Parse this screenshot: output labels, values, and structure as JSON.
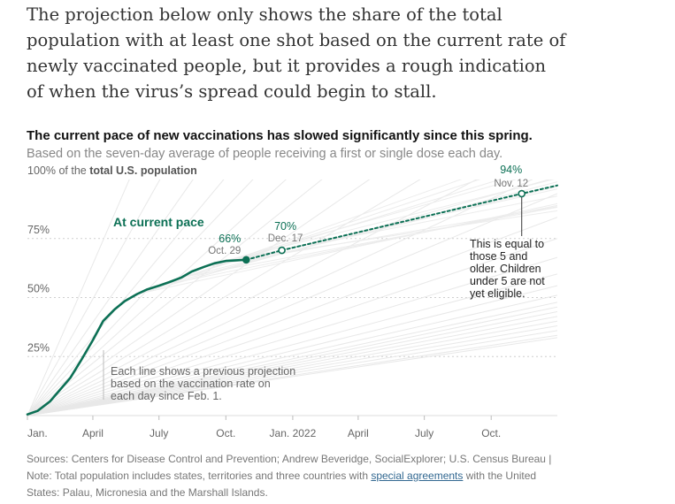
{
  "intro": {
    "text": "The projection below only shows the share of the total population with at least one shot based on the current rate of newly vaccinated people, but it provides a rough indication of when the virus’s spread could begin to stall."
  },
  "chart_data": {
    "type": "line",
    "title": "The current pace of new vaccinations has slowed significantly since this spring.",
    "subtitle": "Based on the seven-day average of people receiving a first or single dose each day.",
    "y_axis": {
      "top_label_prefix": "100% of the ",
      "top_label_bold": "total U.S. population",
      "ticks": [
        "75%",
        "50%",
        "25%"
      ],
      "tick_values": [
        75,
        50,
        25
      ],
      "ylim": [
        0,
        100
      ]
    },
    "x_axis": {
      "ticks": [
        "Jan.",
        "April",
        "July",
        "Oct.",
        "Jan. 2022",
        "April",
        "July",
        "Oct."
      ],
      "tick_dates": [
        "2021-01-01",
        "2021-04-01",
        "2021-07-01",
        "2021-10-01",
        "2022-01-01",
        "2022-04-01",
        "2022-07-01",
        "2022-10-01"
      ],
      "xlim": [
        "2021-01-01",
        "2022-12-31"
      ]
    },
    "grid": true,
    "series": [
      {
        "name": "actual",
        "style": "solid",
        "color": "#0c7055",
        "points": [
          [
            "2021-01-01",
            0.5
          ],
          [
            "2021-01-15",
            2
          ],
          [
            "2021-02-01",
            6
          ],
          [
            "2021-02-15",
            11
          ],
          [
            "2021-03-01",
            16
          ],
          [
            "2021-03-15",
            23
          ],
          [
            "2021-04-01",
            32
          ],
          [
            "2021-04-15",
            40
          ],
          [
            "2021-05-01",
            45
          ],
          [
            "2021-05-15",
            48.5
          ],
          [
            "2021-06-01",
            51.5
          ],
          [
            "2021-06-15",
            53.5
          ],
          [
            "2021-07-01",
            55
          ],
          [
            "2021-07-15",
            56.5
          ],
          [
            "2021-08-01",
            58.5
          ],
          [
            "2021-08-15",
            61
          ],
          [
            "2021-09-01",
            63
          ],
          [
            "2021-09-15",
            64.5
          ],
          [
            "2021-10-01",
            65.5
          ],
          [
            "2021-10-29",
            66
          ]
        ]
      },
      {
        "name": "At current pace",
        "style": "dashed",
        "color": "#0c7055",
        "points": [
          [
            "2021-10-29",
            66
          ],
          [
            "2021-12-17",
            70
          ],
          [
            "2022-11-12",
            94
          ],
          [
            "2022-12-31",
            97.5
          ]
        ]
      }
    ],
    "previous_projections": {
      "start_date": "2021-01-01",
      "end_date": "2022-12-31",
      "end_values": [
        33,
        34,
        36,
        38,
        40,
        42,
        44,
        46,
        48,
        51,
        55,
        60,
        67,
        75,
        84,
        94,
        105,
        118,
        135,
        155,
        180,
        205,
        235,
        270,
        320,
        400,
        520
      ],
      "color": "#e8e8e8"
    },
    "markers": [
      {
        "date": "2021-10-29",
        "value": 66,
        "filled": true,
        "pct": "66%",
        "date_label": "Oct. 29"
      },
      {
        "date": "2021-12-17",
        "value": 70,
        "filled": false,
        "pct": "70%",
        "date_label": "Dec. 17"
      },
      {
        "date": "2022-11-12",
        "value": 94,
        "filled": false,
        "pct": "94%",
        "date_label": "Nov. 12"
      }
    ],
    "annotations": {
      "series_label": "At current pace",
      "eligibility_note": [
        "This is equal to",
        "those 5 and",
        "older. Children",
        "under 5 are not",
        "yet eligible."
      ],
      "lines_note": [
        "Each line shows a previous projection",
        "based on the vaccination rate on",
        "each day since Feb. 1."
      ]
    }
  },
  "notes": {
    "sources_text": "Sources: Centers for Disease Control and Prevention; Andrew Beveridge, SocialExplorer; U.S. Census Bureau | Note: Total population includes states, territories and three countries with ",
    "link_text": "special agreements",
    "after_link": " with the United States: Palau, Micronesia and the Marshall Islands."
  }
}
